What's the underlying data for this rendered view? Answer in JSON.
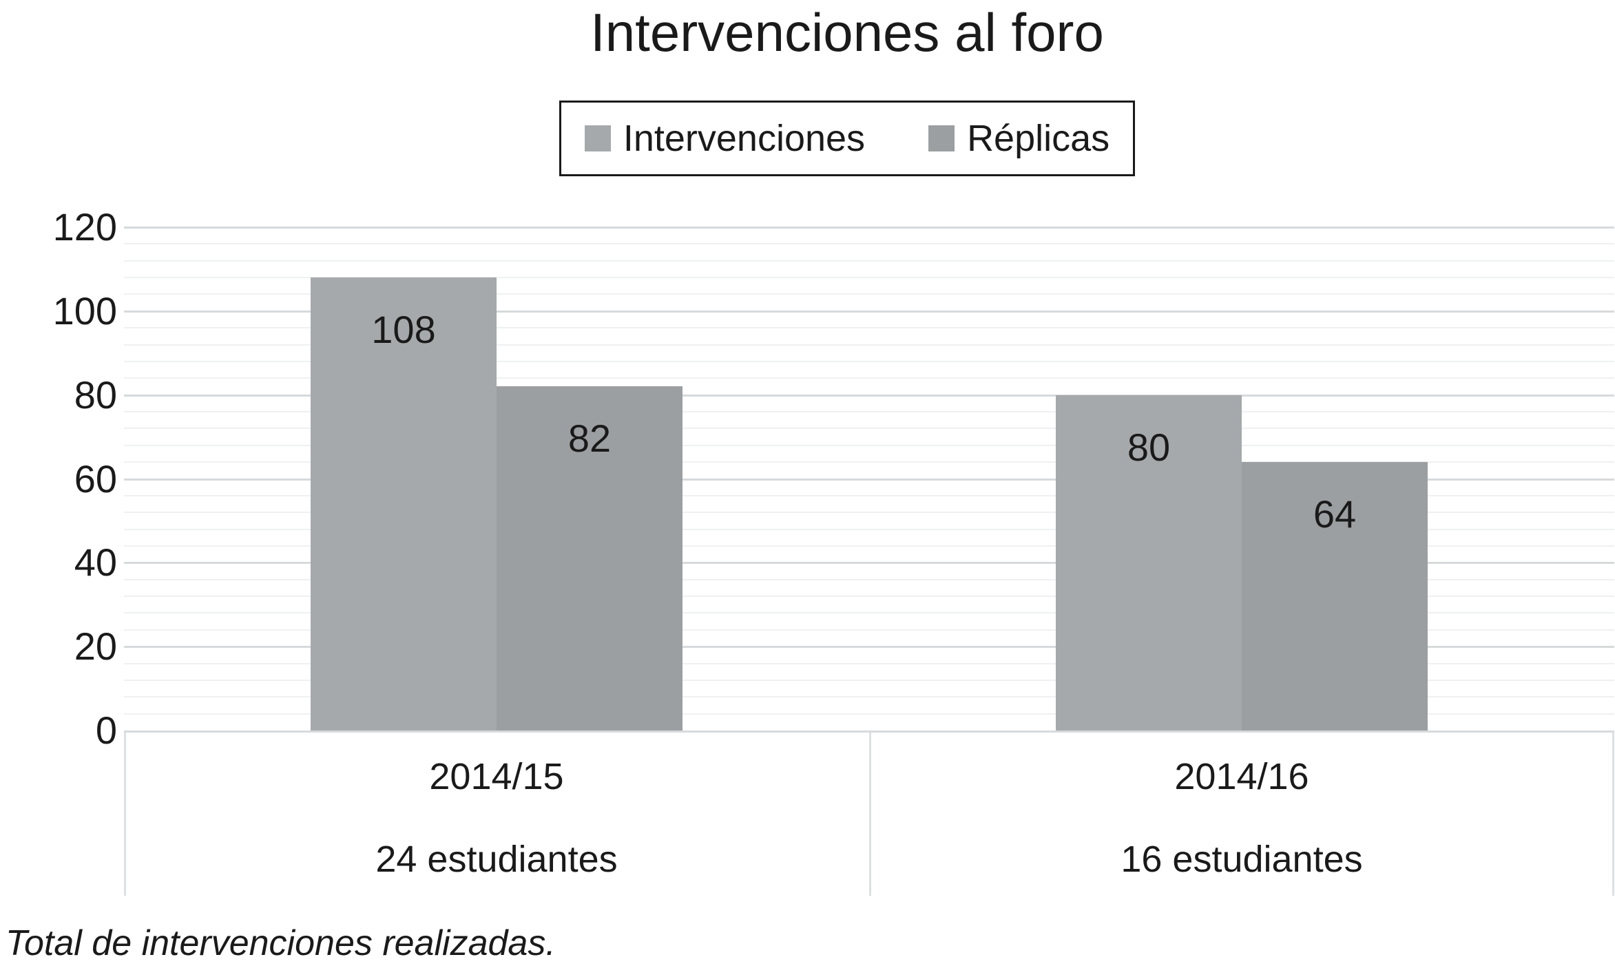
{
  "figure": {
    "title": "Intervenciones al foro",
    "caption": "Total de intervenciones realizadas."
  },
  "legend": {
    "items": [
      {
        "label": "Intervenciones",
        "color": "#a6a9ab"
      },
      {
        "label": "Réplicas",
        "color": "#9c9fa2"
      }
    ]
  },
  "chart_data": {
    "type": "bar",
    "title": "Intervenciones al foro",
    "categories": [
      "2014/15",
      "2014/16"
    ],
    "category_sublabels": [
      "24 estudiantes",
      "16 estudiantes"
    ],
    "series": [
      {
        "name": "Intervenciones",
        "values": [
          108,
          80
        ],
        "color": "#a6a9ab"
      },
      {
        "name": "Réplicas",
        "values": [
          82,
          64
        ],
        "color": "#9c9fa2"
      }
    ],
    "xlabel": "",
    "ylabel": "",
    "ylim": [
      0,
      120
    ],
    "yticks": [
      0,
      20,
      40,
      60,
      80,
      100,
      120
    ],
    "major_unit": 20,
    "minor_unit": 4,
    "grid": "horizontal, major and minor lines",
    "legend_position": "top",
    "data_labels": "inside-end",
    "caption": "Total de intervenciones realizadas."
  },
  "colors": {
    "background": "#ffffff",
    "text": "#1a1a1a",
    "series1": "#a6a9ab",
    "series2": "#9c9fa2",
    "grid_major": "#d7dadc",
    "grid_minor": "#eef0f1",
    "axis_box": "#dde0e2",
    "legend_border": "#1a1a1a"
  }
}
